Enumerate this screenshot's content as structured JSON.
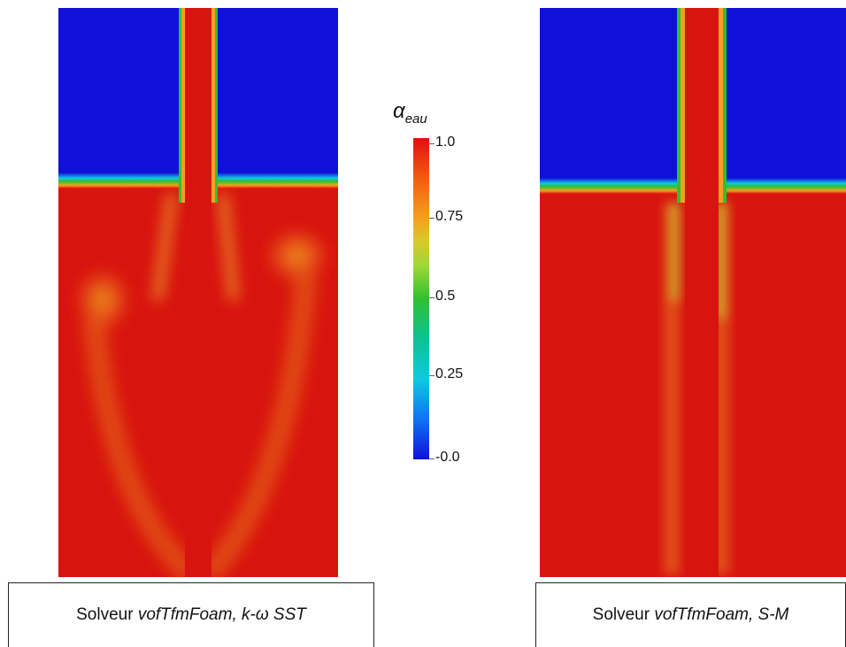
{
  "panels": [
    {
      "caption_prefix": "Solveur ",
      "caption_italic": "vofTfmFoam, k-ω SST"
    },
    {
      "caption_prefix": "Solveur ",
      "caption_italic": "vofTfmFoam, S-M"
    }
  ],
  "colorbar": {
    "symbol": "α",
    "subscript": "eau",
    "ticks": [
      "1.0",
      "0.75",
      "0.5",
      "0.25",
      "-0.0"
    ],
    "colors": {
      "high": "#e01010",
      "mid": "#30c030",
      "low": "#1010d8"
    }
  }
}
